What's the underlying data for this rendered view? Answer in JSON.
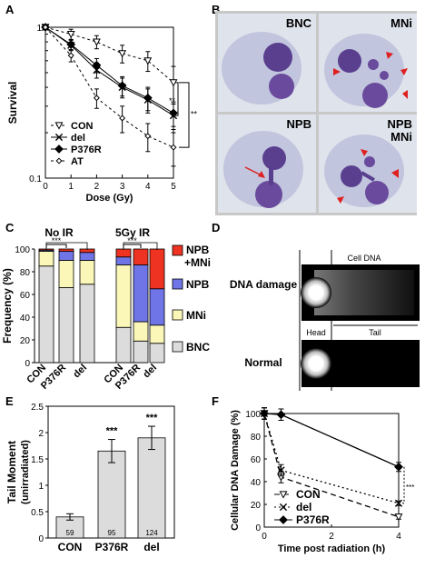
{
  "panels": {
    "a": "A",
    "b": "B",
    "c": "C",
    "d": "D",
    "e": "E",
    "f": "F"
  },
  "chart_data": [
    {
      "panel": "A",
      "type": "line",
      "ylabel": "Survival",
      "xlabel": "Dose (Gy)",
      "yscale": "log",
      "ylim": [
        0.1,
        1
      ],
      "xlim": [
        0,
        5
      ],
      "x": [
        0,
        1,
        2,
        3,
        4,
        5
      ],
      "x_ticks": [
        "0",
        "1",
        "2",
        "3",
        "4",
        "5"
      ],
      "y_ticks": [
        "1",
        "0.1"
      ],
      "significance": [
        "**",
        "**"
      ],
      "series": [
        {
          "name": "CON",
          "marker": "triangle-down",
          "dash": "3,3",
          "values": [
            1,
            0.9,
            0.8,
            0.67,
            0.6,
            0.43
          ],
          "err": [
            0,
            0.07,
            0.08,
            0.09,
            0.09,
            0.12
          ]
        },
        {
          "name": "del",
          "marker": "x",
          "dash": "",
          "values": [
            1,
            0.76,
            0.52,
            0.4,
            0.33,
            0.26
          ],
          "err": [
            0,
            0.06,
            0.06,
            0.06,
            0.06,
            0.05
          ]
        },
        {
          "name": "P376R",
          "marker": "diamond",
          "dash": "",
          "values": [
            1,
            0.77,
            0.56,
            0.41,
            0.34,
            0.27
          ],
          "err": [
            0,
            0.06,
            0.06,
            0.06,
            0.06,
            0.05
          ]
        },
        {
          "name": "AT",
          "marker": "diamond-open",
          "dash": "3,3",
          "values": [
            1,
            0.65,
            0.34,
            0.25,
            0.19,
            0.16
          ],
          "err": [
            0,
            0.06,
            0.05,
            0.05,
            0.04,
            0.04
          ]
        }
      ]
    },
    {
      "panel": "C",
      "type": "bar",
      "stacked": true,
      "ylabel": "Frequency (%)",
      "ylim": [
        0,
        100
      ],
      "y_ticks": [
        "0",
        "20",
        "40",
        "60",
        "80",
        "100"
      ],
      "groups": [
        {
          "title": "No IR",
          "categories": [
            "CON",
            "P376R",
            "del"
          ]
        },
        {
          "title": "5Gy IR",
          "categories": [
            "CON",
            "P376R",
            "del"
          ]
        }
      ],
      "significance": [
        "***",
        "***"
      ],
      "series": [
        {
          "name": "BNC",
          "color": "#dcdcdc",
          "values": [
            85,
            66,
            69,
            31,
            19,
            17
          ]
        },
        {
          "name": "MNi",
          "color": "#fbf7b8",
          "values": [
            13,
            24,
            21,
            55,
            17,
            16
          ]
        },
        {
          "name": "NPB",
          "color": "#6f75e6",
          "values": [
            1,
            8,
            7,
            7,
            50,
            32
          ]
        },
        {
          "name": "NPB +MNi",
          "color": "#ee3322",
          "values": [
            1,
            2,
            3,
            7,
            14,
            35
          ]
        }
      ]
    },
    {
      "panel": "E",
      "type": "bar",
      "ylabel": "Tail Moment (unirradiated)",
      "ylim": [
        0,
        2.5
      ],
      "y_ticks": [
        "0",
        "0.5",
        "1",
        "1.5",
        "2",
        "2.5"
      ],
      "categories": [
        "CON",
        "P376R",
        "del"
      ],
      "values": [
        0.4,
        1.65,
        1.9
      ],
      "err": [
        0.06,
        0.22,
        0.22
      ],
      "n_labels": [
        "59",
        "95",
        "124"
      ],
      "significance": [
        "",
        "***",
        "***"
      ]
    },
    {
      "panel": "F",
      "type": "line",
      "ylabel": "Cellular DNA Damage (%)",
      "xlabel": "Time post radiation (h)",
      "ylim": [
        0,
        100
      ],
      "xlim": [
        0,
        4
      ],
      "x": [
        0,
        0.5,
        4
      ],
      "x_ticks": [
        "0",
        "2",
        "4"
      ],
      "y_ticks": [
        "0",
        "20",
        "40",
        "60",
        "80",
        "100"
      ],
      "significance": "***",
      "series": [
        {
          "name": "CON",
          "marker": "triangle-down",
          "dash": "6,4",
          "values": [
            100,
            44,
            9
          ],
          "err": [
            5,
            5,
            2
          ]
        },
        {
          "name": "del",
          "marker": "x",
          "dash": "2,3",
          "values": [
            100,
            50,
            21
          ],
          "err": [
            5,
            5,
            2
          ]
        },
        {
          "name": "P376R",
          "marker": "diamond",
          "dash": "",
          "values": [
            100,
            99,
            53
          ],
          "err": [
            5,
            5,
            4
          ]
        }
      ]
    }
  ],
  "micrographs": {
    "cells": [
      {
        "label": "BNC",
        "label2": ""
      },
      {
        "label": "MNi",
        "label2": ""
      },
      {
        "label": "NPB",
        "label2": ""
      },
      {
        "label": "NPB",
        "label2": "MNi"
      }
    ]
  },
  "comet": {
    "labels": {
      "cell_dna": "Cell DNA",
      "head": "Head",
      "tail": "Tail"
    },
    "rows": [
      {
        "label": "DNA damage"
      },
      {
        "label": "Normal"
      }
    ]
  }
}
